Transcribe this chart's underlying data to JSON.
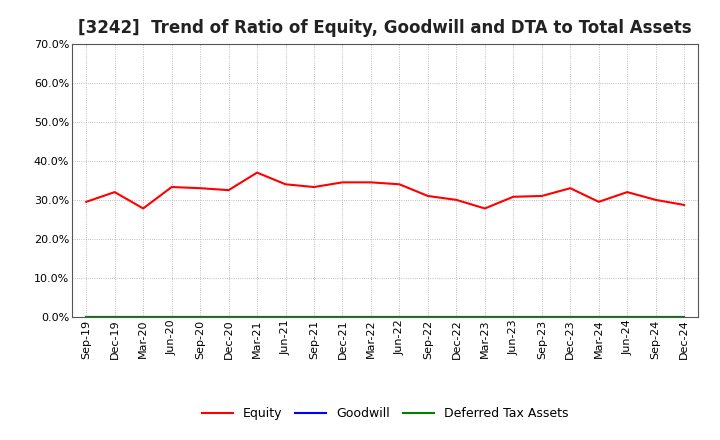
{
  "title": "[3242]  Trend of Ratio of Equity, Goodwill and DTA to Total Assets",
  "x_labels": [
    "Sep-19",
    "Dec-19",
    "Mar-20",
    "Jun-20",
    "Sep-20",
    "Dec-20",
    "Mar-21",
    "Jun-21",
    "Sep-21",
    "Dec-21",
    "Mar-22",
    "Jun-22",
    "Sep-22",
    "Dec-22",
    "Mar-23",
    "Jun-23",
    "Sep-23",
    "Dec-23",
    "Mar-24",
    "Jun-24",
    "Sep-24",
    "Dec-24"
  ],
  "equity": [
    0.295,
    0.32,
    0.278,
    0.333,
    0.33,
    0.325,
    0.37,
    0.34,
    0.333,
    0.345,
    0.345,
    0.34,
    0.31,
    0.3,
    0.278,
    0.308,
    0.31,
    0.33,
    0.295,
    0.32,
    0.3,
    0.287
  ],
  "goodwill": [
    0.0,
    0.0,
    0.0,
    0.0,
    0.0,
    0.0,
    0.0,
    0.0,
    0.0,
    0.0,
    0.0,
    0.0,
    0.0,
    0.0,
    0.0,
    0.0,
    0.0,
    0.0,
    0.0,
    0.0,
    0.0,
    0.0
  ],
  "dta": [
    0.0,
    0.0,
    0.0,
    0.0,
    0.0,
    0.0,
    0.0,
    0.0,
    0.0,
    0.0,
    0.0,
    0.0,
    0.0,
    0.0,
    0.0,
    0.0,
    0.0,
    0.0,
    0.0,
    0.0,
    0.0,
    0.0
  ],
  "equity_color": "#FF0000",
  "goodwill_color": "#0000FF",
  "dta_color": "#008000",
  "ylim": [
    0.0,
    0.7
  ],
  "yticks": [
    0.0,
    0.1,
    0.2,
    0.3,
    0.4,
    0.5,
    0.6,
    0.7
  ],
  "bg_color": "#FFFFFF",
  "plot_bg_color": "#FFFFFF",
  "grid_color": "#AAAAAA",
  "title_fontsize": 12,
  "axis_fontsize": 8,
  "legend_fontsize": 9
}
